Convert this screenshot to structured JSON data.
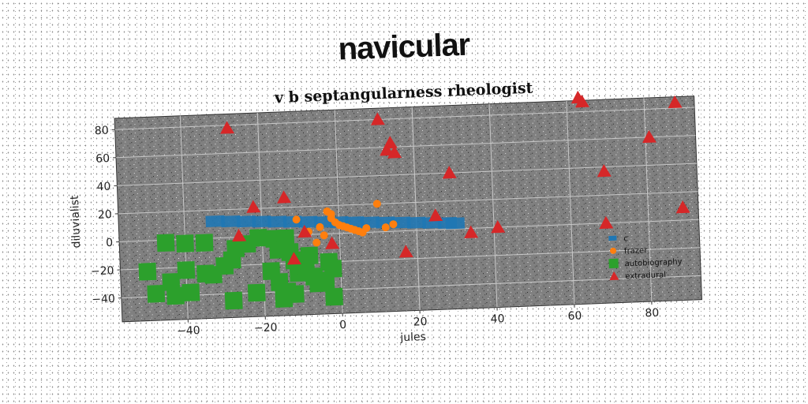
{
  "chart_data": {
    "type": "scatter",
    "suptitle": "navicular",
    "title": "v b septangularness rheologist",
    "xlabel": "jules",
    "ylabel": "diluvialist",
    "xlim": [
      -57,
      93
    ],
    "ylim": [
      -57,
      88
    ],
    "xticks": [
      -40,
      -20,
      0,
      20,
      40,
      60,
      80
    ],
    "yticks": [
      -40,
      -20,
      0,
      20,
      40,
      60,
      80
    ],
    "grid": true,
    "legend_position": "lower-right",
    "series": [
      {
        "name": "c",
        "marker": "x-error-band",
        "color": "#1f77b4",
        "points": [
          [
            -32,
            12
          ],
          [
            -28,
            11.5
          ],
          [
            -24,
            11
          ],
          [
            -20,
            10.5
          ],
          [
            -16,
            10
          ],
          [
            -12,
            9.5
          ],
          [
            -8,
            9
          ],
          [
            -4,
            8.5
          ],
          [
            0,
            8
          ],
          [
            4,
            7.5
          ],
          [
            8,
            7
          ],
          [
            12,
            6.5
          ],
          [
            16,
            6
          ],
          [
            20,
            5.5
          ],
          [
            24,
            5
          ],
          [
            28,
            4.5
          ],
          [
            30,
            4
          ]
        ],
        "spread": 4
      },
      {
        "name": "frazer",
        "marker": "circle",
        "color": "#ff7f0e",
        "points": [
          [
            -11,
            11
          ],
          [
            -5,
            5
          ],
          [
            -4,
            -1
          ],
          [
            -6,
            -6
          ],
          [
            -3,
            16
          ],
          [
            -2,
            11
          ],
          [
            -1,
            8
          ],
          [
            0,
            6
          ],
          [
            1,
            5
          ],
          [
            2,
            4
          ],
          [
            3,
            3
          ],
          [
            4,
            2
          ],
          [
            5,
            1
          ],
          [
            6,
            0
          ],
          [
            7,
            3
          ],
          [
            10,
            20
          ],
          [
            12,
            3
          ],
          [
            14,
            5
          ],
          [
            -8,
            2
          ],
          [
            -2,
            14
          ]
        ]
      },
      {
        "name": "autobiography",
        "marker": "square",
        "color": "#2ca02c",
        "points": [
          [
            -45,
            -2
          ],
          [
            -40,
            -3
          ],
          [
            -35,
            -3
          ],
          [
            -50,
            -22
          ],
          [
            -44,
            -30
          ],
          [
            -48,
            -38
          ],
          [
            -43,
            -40
          ],
          [
            -39,
            -38
          ],
          [
            -40,
            -22
          ],
          [
            -35,
            -25
          ],
          [
            -33,
            -26
          ],
          [
            -30,
            -20
          ],
          [
            -28,
            -16
          ],
          [
            -27,
            -8
          ],
          [
            -24,
            -5
          ],
          [
            -21,
            -1
          ],
          [
            -17,
            -2
          ],
          [
            -16,
            -10
          ],
          [
            -14,
            -2
          ],
          [
            -13,
            -12
          ],
          [
            -12,
            -18
          ],
          [
            -18,
            -25
          ],
          [
            -16,
            -33
          ],
          [
            -14,
            -40
          ],
          [
            -11,
            -27
          ],
          [
            -9,
            -22
          ],
          [
            -7,
            -30
          ],
          [
            -4,
            -33
          ],
          [
            -3,
            -20
          ],
          [
            -2,
            -45
          ],
          [
            -28,
            -45
          ],
          [
            -22,
            -40
          ],
          [
            -15,
            -45
          ],
          [
            -12,
            -42
          ],
          [
            -6,
            -35
          ],
          [
            -8,
            -15
          ],
          [
            -2,
            -25
          ]
        ]
      },
      {
        "name": "extradural",
        "marker": "triangle",
        "color": "#d62728",
        "points": [
          [
            -28,
            78
          ],
          [
            -22,
            21
          ],
          [
            -14,
            27
          ],
          [
            -26,
            1
          ],
          [
            -9,
            2
          ],
          [
            -12,
            -17
          ],
          [
            -2,
            -7
          ],
          [
            11,
            80
          ],
          [
            14,
            63
          ],
          [
            13,
            58
          ],
          [
            15,
            56
          ],
          [
            17,
            -15
          ],
          [
            25,
            10
          ],
          [
            29,
            40
          ],
          [
            34,
            -3
          ],
          [
            41,
            0
          ],
          [
            63,
            90
          ],
          [
            64,
            87
          ],
          [
            69,
            37
          ],
          [
            69,
            0
          ],
          [
            81,
            60
          ],
          [
            88,
            84
          ],
          [
            89,
            9
          ]
        ]
      }
    ]
  }
}
